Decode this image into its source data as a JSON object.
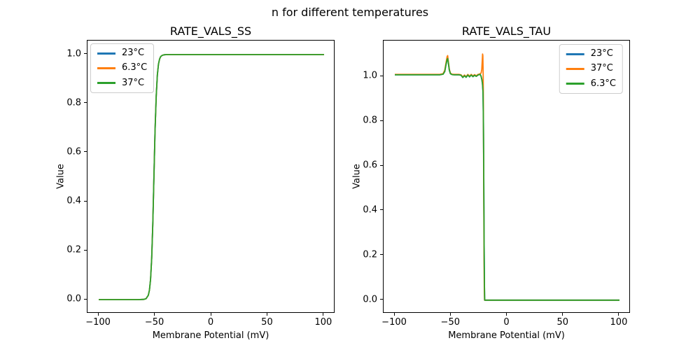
{
  "suptitle": "n for different temperatures",
  "colors": {
    "series_blue": "#1f77b4",
    "series_orange": "#ff7f0e",
    "series_green": "#2ca02c",
    "spine": "#000000",
    "legend_border": "#cccccc",
    "background": "#ffffff"
  },
  "chart_data": [
    {
      "type": "line",
      "title": "RATE_VALS_SS",
      "xlabel": "Membrane Potential (mV)",
      "ylabel": "Value",
      "xlim": [
        -110,
        110
      ],
      "ylim": [
        -0.057,
        1.057
      ],
      "grid": false,
      "legend_position": "upper-left",
      "xticks": [
        {
          "v": -100,
          "label": "−100"
        },
        {
          "v": -50,
          "label": "−50"
        },
        {
          "v": 0,
          "label": "0"
        },
        {
          "v": 50,
          "label": "50"
        },
        {
          "v": 100,
          "label": "100"
        }
      ],
      "yticks": [
        {
          "v": 0.0,
          "label": "0.0"
        },
        {
          "v": 0.2,
          "label": "0.2"
        },
        {
          "v": 0.4,
          "label": "0.4"
        },
        {
          "v": 0.6,
          "label": "0.6"
        },
        {
          "v": 0.8,
          "label": "0.8"
        },
        {
          "v": 1.0,
          "label": "1.0"
        }
      ],
      "series": [
        {
          "name": "23°C",
          "color": "#1f77b4",
          "x": [
            -100,
            -90,
            -80,
            -70,
            -65,
            -60,
            -58,
            -56,
            -55,
            -54,
            -53,
            -52,
            -51,
            -50,
            -49,
            -48,
            -47,
            -46,
            -45,
            -44,
            -43,
            -42,
            -40,
            -35,
            -30,
            -20,
            -10,
            0,
            20,
            40,
            60,
            80,
            100
          ],
          "y": [
            0,
            0,
            0,
            0,
            0,
            0.001,
            0.004,
            0.018,
            0.039,
            0.083,
            0.168,
            0.31,
            0.5,
            0.69,
            0.832,
            0.917,
            0.961,
            0.982,
            0.992,
            0.996,
            0.998,
            0.999,
            1,
            1,
            1,
            1,
            1,
            1,
            1,
            1,
            1,
            1,
            1
          ]
        },
        {
          "name": "6.3°C",
          "color": "#ff7f0e",
          "x": [
            -100,
            -90,
            -80,
            -70,
            -65,
            -60,
            -58,
            -56,
            -55,
            -54,
            -53,
            -52,
            -51,
            -50,
            -49,
            -48,
            -47,
            -46,
            -45,
            -44,
            -43,
            -42,
            -40,
            -35,
            -30,
            -20,
            -10,
            0,
            20,
            40,
            60,
            80,
            100
          ],
          "y": [
            0,
            0,
            0,
            0,
            0,
            0.001,
            0.004,
            0.018,
            0.039,
            0.083,
            0.168,
            0.31,
            0.5,
            0.69,
            0.832,
            0.917,
            0.961,
            0.982,
            0.992,
            0.996,
            0.998,
            0.999,
            1,
            1,
            1,
            1,
            1,
            1,
            1,
            1,
            1,
            1,
            1
          ]
        },
        {
          "name": "37°C",
          "color": "#2ca02c",
          "x": [
            -100,
            -90,
            -80,
            -70,
            -65,
            -60,
            -58,
            -56,
            -55,
            -54,
            -53,
            -52,
            -51,
            -50,
            -49,
            -48,
            -47,
            -46,
            -45,
            -44,
            -43,
            -42,
            -40,
            -35,
            -30,
            -20,
            -10,
            0,
            20,
            40,
            60,
            80,
            100
          ],
          "y": [
            0,
            0,
            0,
            0,
            0,
            0.001,
            0.004,
            0.018,
            0.039,
            0.083,
            0.168,
            0.31,
            0.5,
            0.69,
            0.832,
            0.917,
            0.961,
            0.982,
            0.992,
            0.996,
            0.998,
            0.999,
            1,
            1,
            1,
            1,
            1,
            1,
            1,
            1,
            1,
            1,
            1
          ]
        }
      ]
    },
    {
      "type": "line",
      "title": "RATE_VALS_TAU",
      "xlabel": "Membrane Potential (mV)",
      "ylabel": "Value",
      "xlim": [
        -110,
        110
      ],
      "ylim": [
        -0.06,
        1.16
      ],
      "grid": false,
      "legend_position": "upper-right",
      "xticks": [
        {
          "v": -100,
          "label": "−100"
        },
        {
          "v": -50,
          "label": "−50"
        },
        {
          "v": 0,
          "label": "0"
        },
        {
          "v": 50,
          "label": "50"
        },
        {
          "v": 100,
          "label": "100"
        }
      ],
      "yticks": [
        {
          "v": 0.0,
          "label": "0.0"
        },
        {
          "v": 0.2,
          "label": "0.2"
        },
        {
          "v": 0.4,
          "label": "0.4"
        },
        {
          "v": 0.6,
          "label": "0.6"
        },
        {
          "v": 0.8,
          "label": "0.8"
        },
        {
          "v": 1.0,
          "label": "1.0"
        }
      ],
      "series": [
        {
          "name": "23°C",
          "color": "#1f77b4",
          "x": [
            -100,
            -90,
            -80,
            -70,
            -65,
            -60,
            -57,
            -55.5,
            -54.5,
            -53.5,
            -53,
            -52.5,
            -51.5,
            -50.5,
            -49,
            -47,
            -45,
            -43,
            -41,
            -39.5,
            -38,
            -36.5,
            -35,
            -33.5,
            -32,
            -30.5,
            -29,
            -27.5,
            -26,
            -25,
            -24,
            -23.2,
            -22.5,
            -22,
            -21.5,
            -21.1,
            -20.8,
            -20.5,
            -20.2,
            -20,
            -15,
            0,
            25,
            50,
            75,
            100
          ],
          "y": [
            1.007,
            1.007,
            1.007,
            1.007,
            1.007,
            1.007,
            1.01,
            1.022,
            1.052,
            1.075,
            1.08,
            1.065,
            1.028,
            1.012,
            1.008,
            1.007,
            1.007,
            1.007,
            1.005,
            0.995,
            1.003,
            0.996,
            1.006,
            0.998,
            1.006,
            0.999,
            1.005,
            1.0,
            1.006,
            1.008,
            1.009,
            1.0,
            0.985,
            0.968,
            0.93,
            0.8,
            0.55,
            0.25,
            0.06,
            0,
            0,
            0,
            0,
            0,
            0,
            0
          ]
        },
        {
          "name": "37°C",
          "color": "#ff7f0e",
          "x": [
            -100,
            -90,
            -80,
            -70,
            -65,
            -60,
            -57,
            -55.5,
            -54.5,
            -53.5,
            -53,
            -52.5,
            -51.5,
            -50.5,
            -49,
            -47,
            -45,
            -43,
            -41,
            -39.5,
            -38,
            -36.5,
            -35,
            -33.5,
            -32,
            -30.5,
            -29,
            -27.5,
            -26,
            -25,
            -24,
            -23.2,
            -22.6,
            -22.2,
            -21.9,
            -21.6,
            -21.3,
            -21.05,
            -20.8,
            -20.55,
            -20.3,
            -20.1,
            -15,
            0,
            25,
            50,
            75,
            100
          ],
          "y": [
            1.009,
            1.009,
            1.009,
            1.009,
            1.009,
            1.009,
            1.012,
            1.028,
            1.06,
            1.088,
            1.093,
            1.072,
            1.032,
            1.014,
            1.01,
            1.009,
            1.009,
            1.009,
            1.007,
            0.998,
            1.006,
            0.999,
            1.009,
            1.001,
            1.009,
            1.002,
            1.008,
            1.003,
            1.009,
            1.01,
            1.012,
            1.015,
            1.03,
            1.07,
            1.1,
            1.093,
            1.0,
            0.75,
            0.45,
            0.18,
            0.04,
            0,
            0,
            0,
            0,
            0,
            0,
            0
          ]
        },
        {
          "name": "6.3°C",
          "color": "#2ca02c",
          "x": [
            -100,
            -90,
            -80,
            -70,
            -65,
            -60,
            -57,
            -55.5,
            -54.5,
            -53.5,
            -53,
            -52.5,
            -51.5,
            -50.5,
            -49,
            -47,
            -45,
            -43,
            -41,
            -39.5,
            -38,
            -36.5,
            -35,
            -33.5,
            -32,
            -30.5,
            -29,
            -27.5,
            -26,
            -25,
            -24,
            -23.2,
            -22.5,
            -22,
            -21.5,
            -21.1,
            -20.8,
            -20.5,
            -20.2,
            -20,
            -15,
            0,
            25,
            50,
            75,
            100
          ],
          "y": [
            1.007,
            1.007,
            1.007,
            1.007,
            1.007,
            1.007,
            1.01,
            1.022,
            1.052,
            1.075,
            1.08,
            1.065,
            1.028,
            1.012,
            1.008,
            1.007,
            1.007,
            1.007,
            1.005,
            0.995,
            1.003,
            0.996,
            1.006,
            0.998,
            1.006,
            0.999,
            1.005,
            1.0,
            1.006,
            1.008,
            1.009,
            1.0,
            0.985,
            0.968,
            0.93,
            0.8,
            0.55,
            0.25,
            0.06,
            0,
            0,
            0,
            0,
            0,
            0,
            0
          ]
        }
      ]
    }
  ]
}
